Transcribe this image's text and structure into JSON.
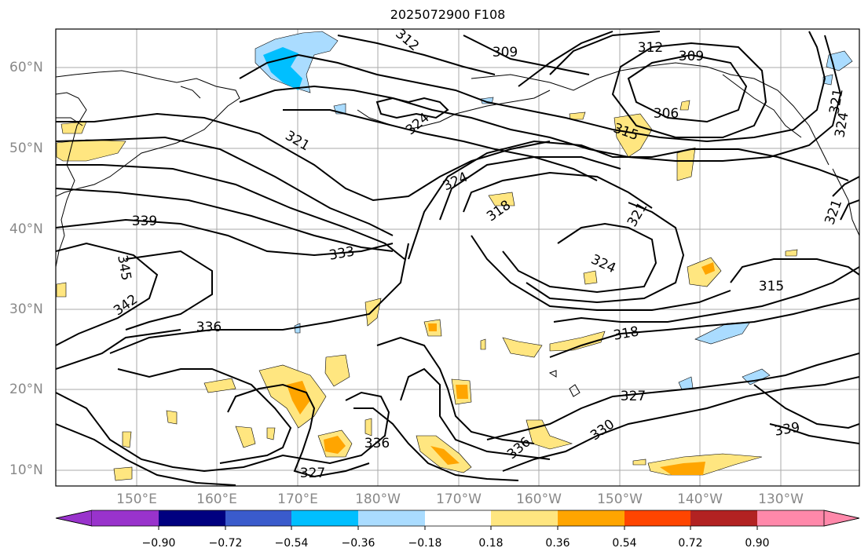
{
  "title": "2025072900 F108",
  "lat_labels": [
    "60°N",
    "50°N",
    "40°N",
    "30°N",
    "20°N",
    "10°N"
  ],
  "lon_labels": [
    "150°E",
    "160°E",
    "170°E",
    "180°W",
    "170°W",
    "160°W",
    "150°W",
    "140°W",
    "130°W"
  ],
  "contour_labels": [
    "312",
    "309",
    "312",
    "309",
    "306",
    "315",
    "321",
    "324",
    "324",
    "318",
    "321",
    "324",
    "315",
    "339",
    "345",
    "333",
    "342",
    "336",
    "318",
    "327",
    "330",
    "336",
    "339",
    "336",
    "327",
    "321",
    "324",
    "321"
  ],
  "colorbar": {
    "ticks": [
      "−0.90",
      "−0.72",
      "−0.54",
      "−0.36",
      "−0.18",
      "0.18",
      "0.36",
      "0.54",
      "0.72",
      "0.90"
    ],
    "colors": [
      "#9933cc",
      "#000080",
      "#3a5bcc",
      "#00bfff",
      "#aadcff",
      "#ffffff",
      "#ffe680",
      "#ffa500",
      "#ff4500",
      "#b22222",
      "#ff88aa"
    ]
  }
}
